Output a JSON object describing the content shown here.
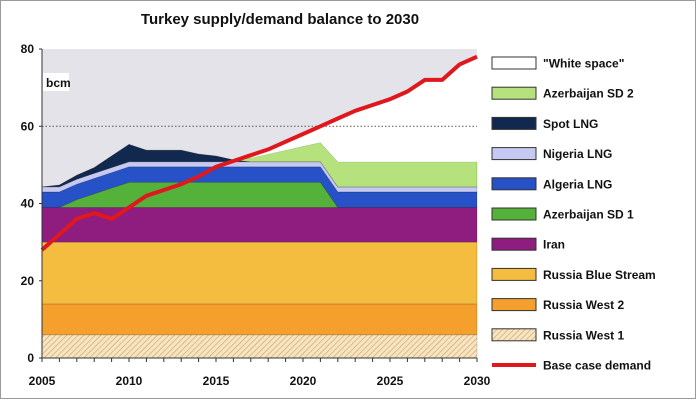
{
  "chart_data": {
    "type": "area",
    "title": "Turkey supply/demand balance to 2030",
    "ylabel": "bcm",
    "xlim": [
      2005,
      2030
    ],
    "ylim": [
      0,
      80
    ],
    "xticks": [
      2005,
      2010,
      2015,
      2020,
      2025,
      2030
    ],
    "yticks": [
      0,
      20,
      40,
      60,
      80
    ],
    "gridline": 60,
    "legend_position": "right",
    "x": [
      2005,
      2006,
      2007,
      2008,
      2009,
      2010,
      2011,
      2012,
      2013,
      2014,
      2015,
      2016,
      2017,
      2018,
      2019,
      2020,
      2021,
      2022,
      2023,
      2024,
      2025,
      2026,
      2027,
      2028,
      2029,
      2030
    ],
    "series": [
      {
        "name": "Russia West 1",
        "color": "#f3dcb0",
        "hatch": true,
        "values": [
          6,
          6,
          6,
          6,
          6,
          6,
          6,
          6,
          6,
          6,
          6,
          6,
          6,
          6,
          6,
          6,
          6,
          6,
          6,
          6,
          6,
          6,
          6,
          6,
          6,
          6
        ]
      },
      {
        "name": "Russia West 2",
        "color": "#f5a02c",
        "values": [
          8,
          8,
          8,
          8,
          8,
          8,
          8,
          8,
          8,
          8,
          8,
          8,
          8,
          8,
          8,
          8,
          8,
          8,
          8,
          8,
          8,
          8,
          8,
          8,
          8,
          8
        ]
      },
      {
        "name": "Russia Blue Stream",
        "color": "#f5bd3f",
        "values": [
          16,
          16,
          16,
          16,
          16,
          16,
          16,
          16,
          16,
          16,
          16,
          16,
          16,
          16,
          16,
          16,
          16,
          16,
          16,
          16,
          16,
          16,
          16,
          16,
          16,
          16
        ]
      },
      {
        "name": "Iran",
        "color": "#8e1d7f",
        "values": [
          9,
          9,
          9,
          9,
          9,
          9,
          9,
          9,
          9,
          9,
          9,
          9,
          9,
          9,
          9,
          9,
          9,
          9,
          9,
          9,
          9,
          9,
          9,
          9,
          9,
          9
        ]
      },
      {
        "name": "Azerbaijan SD 1",
        "color": "#54b23a",
        "values": [
          0,
          0,
          2,
          3.5,
          5,
          6.5,
          6.5,
          6.5,
          6.5,
          6.5,
          6.5,
          6.5,
          6.5,
          6.5,
          6.5,
          6.5,
          6.5,
          0,
          0,
          0,
          0,
          0,
          0,
          0,
          0,
          0
        ]
      },
      {
        "name": "Algeria LNG",
        "color": "#2752c7",
        "values": [
          4,
          4,
          4,
          4,
          4,
          4,
          4,
          4,
          4,
          4,
          4,
          4,
          4,
          4,
          4,
          4,
          4,
          4,
          4,
          4,
          4,
          4,
          4,
          4,
          4,
          4
        ]
      },
      {
        "name": "Nigeria LNG",
        "color": "#c6c9f2",
        "values": [
          1.3,
          1.3,
          1.3,
          1.3,
          1.3,
          1.3,
          1.3,
          1.3,
          1.3,
          1.3,
          1.3,
          1.3,
          1.3,
          1.3,
          1.3,
          1.3,
          1.3,
          1.3,
          1.3,
          1.3,
          1.3,
          1.3,
          1.3,
          1.3,
          1.3,
          1.3
        ]
      },
      {
        "name": "Spot LNG",
        "color": "#12294f",
        "values": [
          0,
          0.5,
          1,
          1.5,
          3,
          4.5,
          3,
          3,
          3,
          2,
          1.5,
          0.5,
          0,
          0,
          0,
          0,
          0,
          0,
          0,
          0,
          0,
          0,
          0,
          0,
          0,
          0
        ]
      },
      {
        "name": "Azerbaijan SD 2",
        "color": "#b6e27e",
        "values": [
          0,
          0,
          0,
          0,
          0,
          0,
          0,
          0,
          0,
          0,
          0,
          0,
          1,
          2,
          3,
          4,
          5,
          6.5,
          6.5,
          6.5,
          6.5,
          6.5,
          6.5,
          6.5,
          6.5,
          6.5
        ]
      },
      {
        "name": "\"White space\"",
        "color": "#ffffff",
        "values": [
          0,
          0,
          0,
          0,
          0,
          0,
          0,
          0,
          0,
          0,
          0,
          0,
          0,
          0,
          0,
          0,
          0,
          0,
          0,
          0,
          0,
          0,
          0,
          0,
          0,
          0
        ]
      },
      {
        "name": "Base case demand",
        "color": "#e0171c",
        "kind": "line",
        "values": [
          28,
          32,
          36,
          37.5,
          36,
          39,
          42,
          43.5,
          45,
          47,
          49.5,
          51,
          52.5,
          54,
          56,
          58,
          60,
          62,
          64,
          65.5,
          67,
          69,
          72,
          72,
          76,
          78
        ]
      }
    ]
  }
}
